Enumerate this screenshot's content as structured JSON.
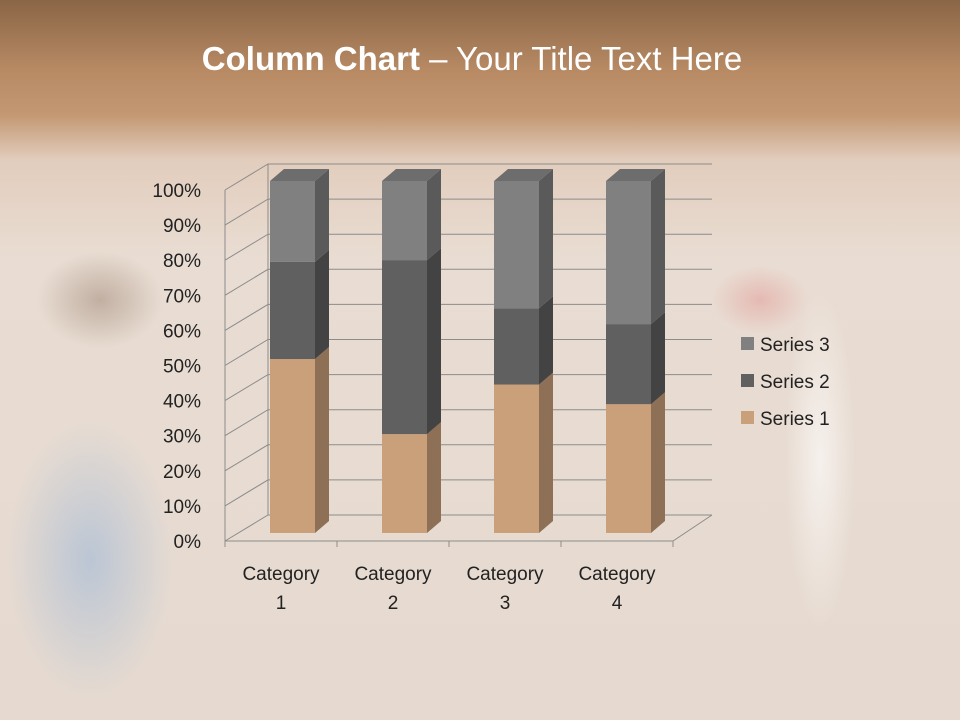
{
  "slide": {
    "title_bold": "Column Chart",
    "title_rest": " – Your Title Text Here"
  },
  "chart_data": {
    "type": "bar",
    "stacked": "percent",
    "three_d": true,
    "categories": [
      "Category 1",
      "Category 2",
      "Category 3",
      "Category 4"
    ],
    "category_lines": [
      [
        "Category",
        "1"
      ],
      [
        "Category",
        "2"
      ],
      [
        "Category",
        "3"
      ],
      [
        "Category",
        "4"
      ]
    ],
    "series": [
      {
        "name": "Series 1",
        "values": [
          4.3,
          2.5,
          3.5,
          4.5
        ],
        "color": "#c9a07a"
      },
      {
        "name": "Series 2",
        "values": [
          2.4,
          4.4,
          1.8,
          2.8
        ],
        "color": "#606060"
      },
      {
        "name": "Series 3",
        "values": [
          2,
          2,
          3,
          5
        ],
        "color": "#808080"
      }
    ],
    "yticks": [
      "0%",
      "10%",
      "20%",
      "30%",
      "40%",
      "50%",
      "60%",
      "70%",
      "80%",
      "90%",
      "100%"
    ],
    "ylim": [
      0,
      100
    ],
    "grid": true,
    "legend": "right"
  }
}
